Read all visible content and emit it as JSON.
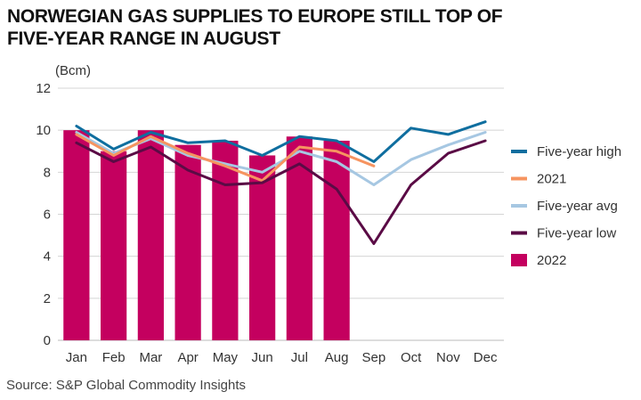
{
  "title_lines": [
    "NORWEGIAN GAS SUPPLIES TO EUROPE STILL TOP OF",
    "FIVE-YEAR RANGE IN AUGUST"
  ],
  "source": "Source: S&P Global Commodity Insights",
  "chart_data": {
    "type": "bar+line",
    "title": "NORWEGIAN GAS SUPPLIES TO EUROPE STILL TOP OF FIVE-YEAR RANGE IN AUGUST",
    "unit_label": "(Bcm)",
    "categories": [
      "Jan",
      "Feb",
      "Mar",
      "Apr",
      "May",
      "Jun",
      "Jul",
      "Aug",
      "Sep",
      "Oct",
      "Nov",
      "Dec"
    ],
    "ylim": [
      0,
      12
    ],
    "yticks": [
      0,
      2,
      4,
      6,
      8,
      10,
      12
    ],
    "grid": "horizontal",
    "legend_position": "right",
    "bars": {
      "name": "2022",
      "color": "#c4005f",
      "values": [
        10.0,
        9.0,
        10.0,
        9.3,
        9.5,
        8.8,
        9.7,
        9.5,
        null,
        null,
        null,
        null
      ]
    },
    "series": [
      {
        "name": "Five-year high",
        "color": "#0f6e9f",
        "values": [
          10.2,
          9.1,
          9.9,
          9.4,
          9.5,
          8.8,
          9.7,
          9.5,
          8.5,
          10.1,
          9.8,
          10.4
        ]
      },
      {
        "name": "2021",
        "color": "#f69460",
        "values": [
          9.8,
          8.8,
          9.7,
          8.9,
          8.3,
          7.6,
          9.2,
          9.0,
          8.3,
          null,
          null,
          null
        ]
      },
      {
        "name": "Five-year avg",
        "color": "#a6c7e2",
        "values": [
          9.9,
          8.9,
          9.6,
          8.8,
          8.4,
          8.0,
          9.0,
          8.5,
          7.4,
          8.6,
          9.3,
          9.9
        ]
      },
      {
        "name": "Five-year low",
        "color": "#5a0b45",
        "values": [
          9.4,
          8.5,
          9.2,
          8.1,
          7.4,
          7.5,
          8.4,
          7.2,
          4.6,
          7.4,
          8.9,
          9.5
        ]
      }
    ],
    "legend_order": [
      "Five-year high",
      "2021",
      "Five-year avg",
      "Five-year low",
      "2022"
    ]
  }
}
